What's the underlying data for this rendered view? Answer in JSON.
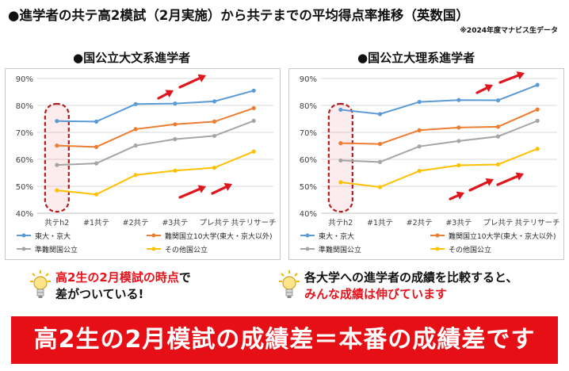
{
  "header": {
    "title": "●進学者の共テ高2模試（2月実施）から共テまでの平均得点率推移（英数国）",
    "source": "※2024年度マナビス生データ"
  },
  "colors": {
    "series1": "#5b9bd5",
    "series2": "#ed7d31",
    "series3": "#a5a5a5",
    "series4": "#ffc000",
    "highlight": "#b01e1e",
    "banner": "#e60f15",
    "accent_text": "#e8121c"
  },
  "chart_data": [
    {
      "type": "line",
      "title": "●国公立大文系進学者",
      "categories": [
        "共テh2",
        "#1共テ",
        "#2共テ",
        "#3共テ",
        "プレ共テ",
        "共テリサーチ"
      ],
      "ylim": [
        40,
        90
      ],
      "yticks": [
        "40%",
        "50%",
        "60%",
        "70%",
        "80%",
        "90%"
      ],
      "grid": true,
      "legend_position": "bottom",
      "series": [
        {
          "name": "東大・京大",
          "values": [
            74.2,
            74.0,
            80.5,
            80.7,
            81.5,
            85.5
          ]
        },
        {
          "name": "難関国立10大学(東大・京大以外)",
          "values": [
            65.1,
            64.6,
            71.2,
            73.0,
            74.0,
            79.0
          ]
        },
        {
          "name": "準難関国公立",
          "values": [
            57.9,
            58.5,
            65.1,
            67.5,
            68.7,
            74.3
          ]
        },
        {
          "name": "その他国公立",
          "values": [
            48.5,
            47.0,
            54.2,
            55.8,
            56.9,
            62.9
          ]
        }
      ]
    },
    {
      "type": "line",
      "title": "●国公立大理系進学者",
      "categories": [
        "共テh2",
        "#1共テ",
        "#2共テ",
        "#3共テ",
        "プレ共テ",
        "共テリサーチ"
      ],
      "ylim": [
        40,
        90
      ],
      "yticks": [
        "40%",
        "50%",
        "60%",
        "70%",
        "80%",
        "90%"
      ],
      "grid": true,
      "legend_position": "bottom",
      "series": [
        {
          "name": "東大・京大",
          "values": [
            78.4,
            76.8,
            81.3,
            82.0,
            81.9,
            87.6
          ]
        },
        {
          "name": "難関国立10大学(東大・京大以外)",
          "values": [
            66.0,
            65.7,
            70.8,
            71.8,
            72.1,
            78.5
          ]
        },
        {
          "name": "準難関国公立",
          "values": [
            59.6,
            59.0,
            64.8,
            66.8,
            68.5,
            74.3
          ]
        },
        {
          "name": "その他国公立",
          "values": [
            51.5,
            49.7,
            55.7,
            57.8,
            58.1,
            63.9
          ]
        }
      ]
    }
  ],
  "takeaways": {
    "left_line1": "高2生の2月模試の時点",
    "left_line1_suffix": "で",
    "left_line2": "差がついている!",
    "right_line1": "各大学への進学者の成績を比較すると、",
    "right_line2": "みんな成績は伸びています"
  },
  "banner": {
    "text": "高2生の2月模試の成績差＝本番の成績差です"
  }
}
